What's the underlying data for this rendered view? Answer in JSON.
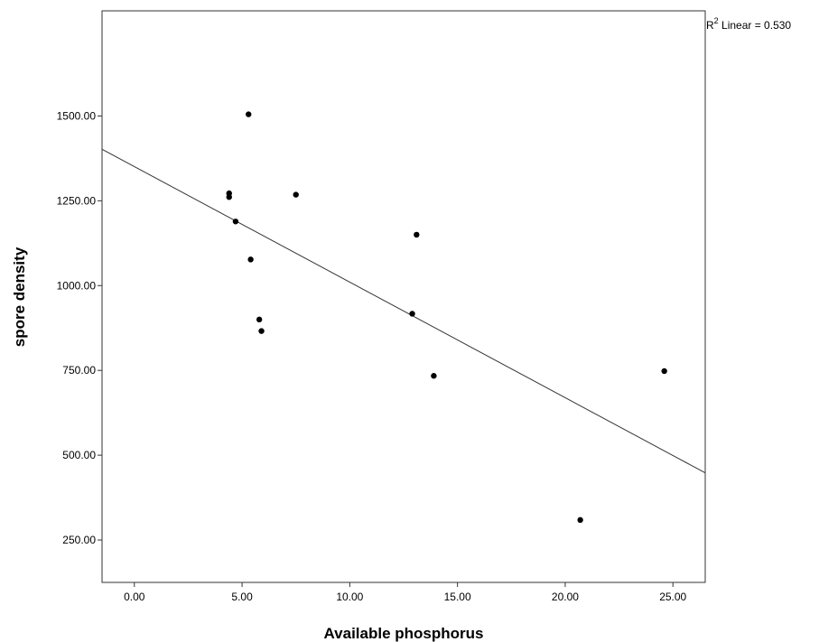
{
  "chart_data": {
    "type": "scatter",
    "xlabel": "Available phosphorus",
    "ylabel": "spore density",
    "xlim": [
      -1.5,
      26.5
    ],
    "ylim": [
      125,
      1810
    ],
    "x_ticks": [
      0,
      5,
      10,
      15,
      20,
      25
    ],
    "y_ticks": [
      250,
      500,
      750,
      1000,
      1250,
      1500
    ],
    "x_tick_labels": [
      "0.00",
      "5.00",
      "10.00",
      "15.00",
      "20.00",
      "25.00"
    ],
    "y_tick_labels": [
      "250.00",
      "500.00",
      "750.00",
      "1000.00",
      "1250.00",
      "1500.00"
    ],
    "points": [
      {
        "x": 5.3,
        "y": 1505
      },
      {
        "x": 4.4,
        "y": 1272
      },
      {
        "x": 4.4,
        "y": 1261
      },
      {
        "x": 7.5,
        "y": 1268
      },
      {
        "x": 4.7,
        "y": 1189
      },
      {
        "x": 13.1,
        "y": 1150
      },
      {
        "x": 5.4,
        "y": 1077
      },
      {
        "x": 12.9,
        "y": 917
      },
      {
        "x": 5.8,
        "y": 900
      },
      {
        "x": 5.9,
        "y": 866
      },
      {
        "x": 13.9,
        "y": 734
      },
      {
        "x": 24.6,
        "y": 748
      },
      {
        "x": 20.7,
        "y": 309
      }
    ],
    "fit_line": {
      "type": "linear",
      "x": [
        -1.5,
        26.5
      ],
      "y": [
        1402,
        448
      ]
    },
    "annotation": {
      "r2_label_base": "R",
      "r2_label_sup": "2",
      "r2_label_rest": " Linear = 0.530"
    },
    "grid": false,
    "legend": "none",
    "colors": {
      "points": "#000000",
      "line": "#333333",
      "frame": "#333333"
    }
  }
}
